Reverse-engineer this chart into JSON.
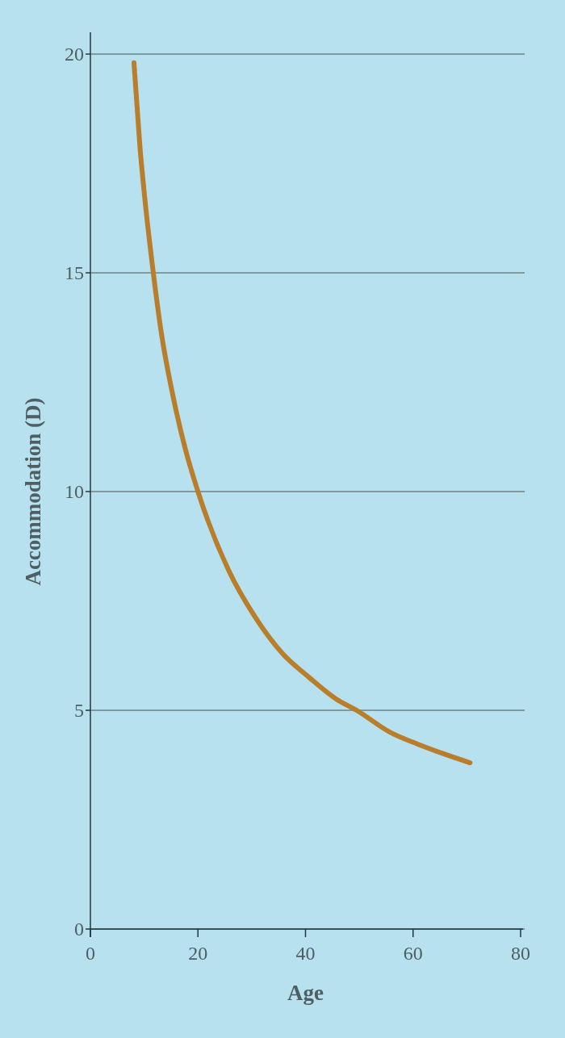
{
  "chart_data": {
    "type": "line",
    "xlabel": "Age",
    "ylabel": "Accommodation (D)",
    "xlim": [
      0,
      80
    ],
    "xticks": [
      0,
      20,
      40,
      60,
      80
    ],
    "ylim": [
      0,
      20
    ],
    "yticks": [
      0,
      5,
      10,
      15,
      20
    ],
    "grid": "y",
    "series": [
      {
        "color": "#b97e2b",
        "x": [
          8.1,
          9.2,
          10.2,
          11.6,
          13.1,
          15.5,
          17.7,
          20,
          25.7,
          30.8,
          35.7,
          40.7,
          45.8,
          49.5,
          55.7,
          60.8,
          65.8,
          70.6
        ],
        "values": [
          19.8,
          17.9,
          16.6,
          15.1,
          13.7,
          12.1,
          10.95,
          10,
          8.2,
          7.1,
          6.3,
          5.75,
          5.25,
          5,
          4.5,
          4.23,
          4,
          3.8
        ]
      }
    ]
  }
}
